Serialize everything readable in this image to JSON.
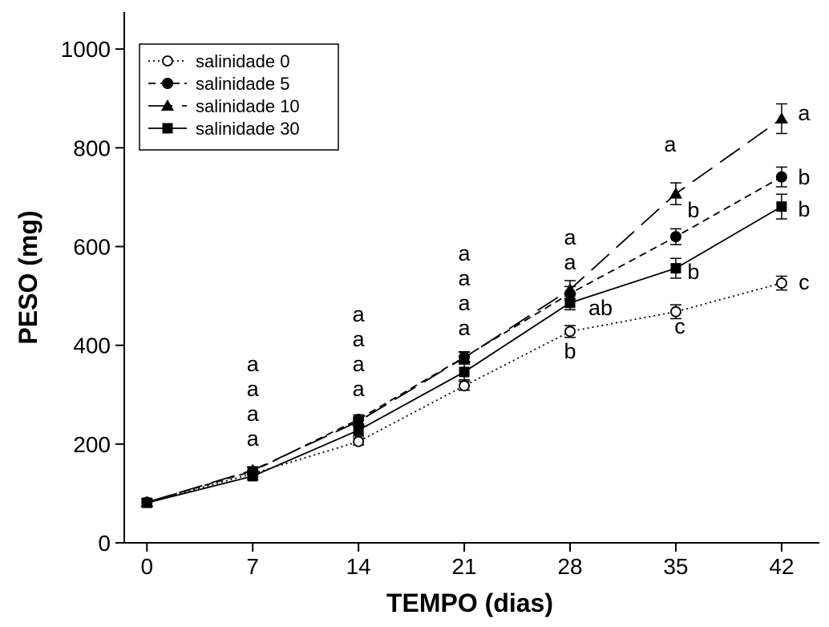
{
  "chart_data": {
    "type": "line",
    "xlabel": "TEMPO (dias)",
    "ylabel": "PESO (mg)",
    "x": [
      0,
      7,
      14,
      21,
      28,
      35,
      42
    ],
    "x_ticks": [
      "0",
      "7",
      "14",
      "21",
      "28",
      "35",
      "42"
    ],
    "y_ticks": [
      "0",
      "200",
      "400",
      "600",
      "800",
      "1000"
    ],
    "xlim": [
      -1.5,
      44.5
    ],
    "ylim": [
      0,
      1075
    ],
    "grid": false,
    "legend_position": "top-left",
    "series": [
      {
        "name": "salinidade 0",
        "marker": "open-circle",
        "dash": "dotted",
        "values": [
          82,
          140,
          205,
          318,
          428,
          468,
          526
        ],
        "errors": [
          7,
          7,
          7,
          9,
          12,
          14,
          14
        ],
        "letters": [
          "",
          "a",
          "a",
          "a",
          "b",
          "c",
          "c"
        ]
      },
      {
        "name": "salinidade 5",
        "marker": "filled-circle",
        "dash": "short-dash",
        "values": [
          82,
          145,
          250,
          376,
          505,
          620,
          741
        ],
        "errors": [
          7,
          7,
          9,
          11,
          14,
          16,
          20
        ],
        "letters": [
          "",
          "a",
          "a",
          "a",
          "a",
          "b",
          "b"
        ]
      },
      {
        "name": "salinidade 10",
        "marker": "filled-triangle",
        "dash": "long-dash",
        "values": [
          82,
          147,
          246,
          375,
          513,
          707,
          859
        ],
        "errors": [
          7,
          7,
          9,
          11,
          18,
          22,
          30
        ],
        "letters": [
          "",
          "a",
          "a",
          "a",
          "a",
          "a",
          "a"
        ]
      },
      {
        "name": "salinidade 30",
        "marker": "filled-square",
        "dash": "solid",
        "values": [
          81,
          135,
          228,
          346,
          486,
          556,
          681
        ],
        "errors": [
          7,
          7,
          12,
          16,
          14,
          20,
          25
        ],
        "letters": [
          "",
          "a",
          "a",
          "a",
          "ab",
          "b",
          "b"
        ]
      }
    ]
  },
  "colors": {
    "line": "#000000",
    "background": "#ffffff"
  }
}
